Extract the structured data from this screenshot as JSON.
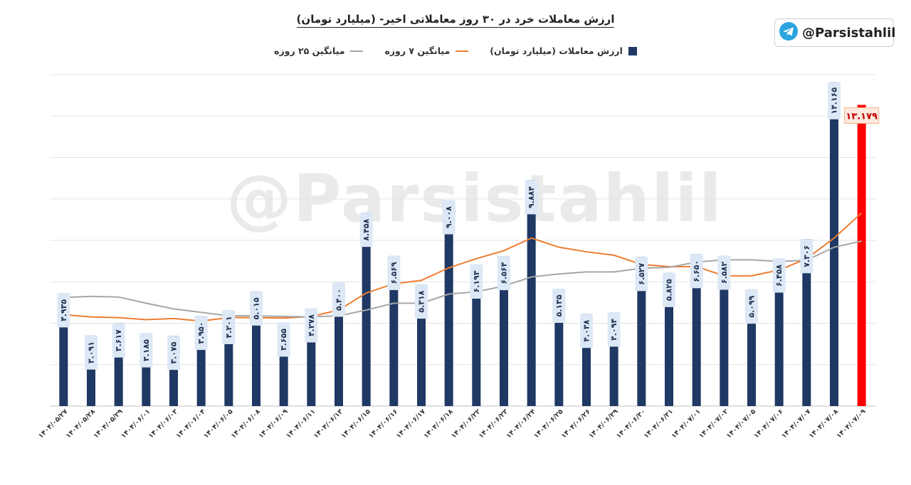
{
  "title": "ارزش معاملات خرد در ۳۰ روز معاملاتی اخیر- (میلیارد تومان)",
  "badge": {
    "icon": "telegram-icon",
    "text": "@Parsistahlil"
  },
  "watermark": "@Parsistahlil",
  "colors": {
    "bar": "#1f3864",
    "last_bar": "#ff0000",
    "ma7": "#ed7d31",
    "ma25": "#a6a6a6",
    "grid": "#e3e3e3"
  },
  "chart_data": {
    "type": "bar",
    "legend_position": "top-center",
    "grid": true,
    "ylim": [
      0,
      14.5
    ],
    "categories": [
      "۱۴۰۴/۰۵/۲۷",
      "۱۴۰۴/۰۵/۲۸",
      "۱۴۰۴/۰۵/۲۹",
      "۱۴۰۴/۰۶/۰۱",
      "۱۴۰۴/۰۶/۰۳",
      "۱۴۰۴/۰۶/۰۴",
      "۱۴۰۴/۰۶/۰۵",
      "۱۴۰۴/۰۶/۰۸",
      "۱۴۰۴/۰۶/۰۹",
      "۱۴۰۴/۰۶/۱۱",
      "۱۴۰۴/۰۶/۱۳",
      "۱۴۰۴/۰۶/۱۵",
      "۱۴۰۴/۰۶/۱۶",
      "۱۴۰۴/۰۶/۱۷",
      "۱۴۰۴/۰۶/۱۸",
      "۱۴۰۴/۰۶/۲۲",
      "۱۴۰۴/۰۶/۲۳",
      "۱۴۰۴/۰۶/۲۴",
      "۱۴۰۴/۰۶/۲۵",
      "۱۴۰۴/۰۶/۲۶",
      "۱۴۰۴/۰۶/۲۹",
      "۱۴۰۴/۰۶/۳۰",
      "۱۴۰۴/۰۶/۳۱",
      "۱۴۰۴/۰۷/۰۱",
      "۱۴۰۴/۰۷/۰۲",
      "۱۴۰۴/۰۷/۰۵",
      "۱۴۰۴/۰۷/۰۶",
      "۱۴۰۴/۰۷/۰۷",
      "۱۴۰۴/۰۷/۰۸",
      "۱۴۰۴/۰۷/۰۹"
    ],
    "series": [
      {
        "name": "ارزش معاملات (میلیارد تومان)",
        "type": "bar",
        "values": [
          4.935,
          3.091,
          3.617,
          3.185,
          3.075,
          3.95,
          4.201,
          5.015,
          3.655,
          4.278,
          5.4,
          8.458,
          6.569,
          5.318,
          9.008,
          6.193,
          6.564,
          9.884,
          5.135,
          4.038,
          4.094,
          6.527,
          5.825,
          6.65,
          6.582,
          5.099,
          6.458,
          7.306,
          14.165,
          13.179
        ],
        "labels": [
          "۴.۹۳۵",
          "۳.۰۹۱",
          "۳.۶۱۷",
          "۳.۱۸۵",
          "۳.۰۷۵",
          "۳.۹۵۰",
          "۴.۲۰۱",
          "۵.۰۱۵",
          "۳.۶۵۵",
          "۴.۲۷۸",
          "۵.۴۰۰",
          "۸.۴۵۸",
          "۶.۵۶۹",
          "۵.۳۱۸",
          "۹.۰۰۸",
          "۶.۱۹۳",
          "۶.۵۶۴",
          "۹.۸۸۴",
          "۵.۱۳۵",
          "۴.۰۳۸",
          "۴.۰۹۴",
          "۶.۵۲۷",
          "۵.۸۲۵",
          "۶.۶۵۰",
          "۶.۵۸۲",
          "۵.۰۹۹",
          "۶.۴۵۸",
          "۷.۳۰۶",
          "۱۴.۱۶۵",
          "۱۳.۱۷۹"
        ]
      },
      {
        "name": "میانگین ۷ روزه",
        "type": "line",
        "values": [
          4.0,
          3.9,
          3.87,
          3.78,
          3.83,
          3.72,
          3.87,
          3.87,
          3.85,
          3.92,
          4.2,
          4.95,
          5.35,
          5.5,
          6.05,
          6.45,
          6.8,
          7.35,
          6.95,
          6.75,
          6.6,
          6.2,
          6.1,
          6.1,
          5.7,
          5.7,
          5.95,
          6.45,
          7.35,
          8.45
        ]
      },
      {
        "name": "میانگین ۲۵ روزه",
        "type": "line",
        "values": [
          4.75,
          4.8,
          4.77,
          4.5,
          4.25,
          4.1,
          3.95,
          3.95,
          3.92,
          3.9,
          3.95,
          4.2,
          4.5,
          4.5,
          4.9,
          5.0,
          5.25,
          5.65,
          5.78,
          5.87,
          5.87,
          6.03,
          6.07,
          6.3,
          6.4,
          6.4,
          6.33,
          6.38,
          6.95,
          7.22
        ]
      }
    ]
  }
}
